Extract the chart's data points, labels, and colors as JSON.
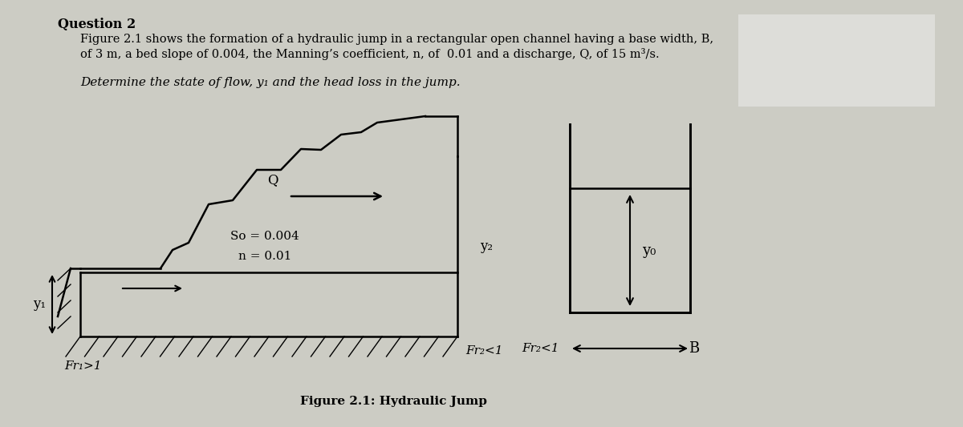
{
  "title": "Question 2",
  "line1": "Figure 2.1 shows the formation of a hydraulic jump in a rectangular open channel having a base width, B,",
  "line2": "of 3 m, a bed slope of 0.004, the Manning’s coefficient, n, of  0.01 and a discharge, Q, of 15 m³/s.",
  "line3": "Determine the state of flow, y₁ and the head loss in the jump.",
  "fig_caption": "Figure 2.1: Hydraulic Jump",
  "label_so": "So = 0.004",
  "label_n": "n = 0.01",
  "label_Q": "Q",
  "label_y1": "y₁",
  "label_y2": "y₂",
  "label_yo": "y₀",
  "label_B": "B",
  "label_Fr1": "Fr₁>1",
  "label_Fr2": "Fr₂<1",
  "bg_color": "#ccccc4",
  "line_color": "#000000",
  "text_color": "#000000",
  "white_box_color": "#e0e0dc"
}
